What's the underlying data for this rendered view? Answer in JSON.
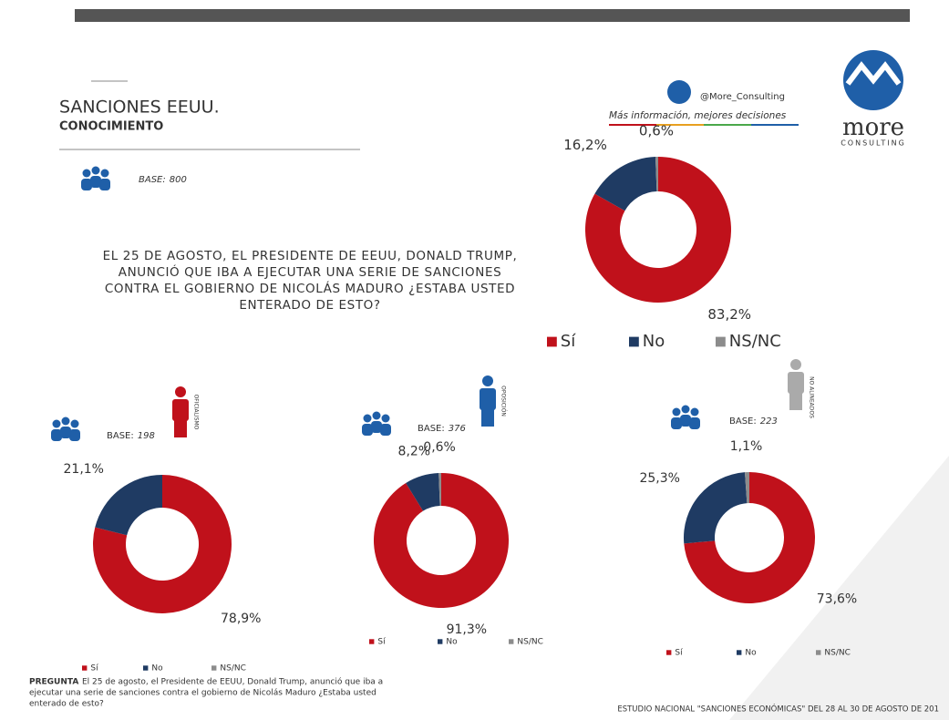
{
  "header": {
    "title": "SANCIONES EEUU.",
    "subtitle": "CONOCIMIENTO",
    "twitter": "@More_Consulting",
    "tagline": "Más información, mejores decisiones",
    "logo": "more",
    "logo_sub": "CONSULTING"
  },
  "question": [
    "EL 25 DE AGOSTO, EL PRESIDENTE DE EEUU, DONALD TRUMP,",
    "ANUNCIÓ QUE IBA A EJECUTAR UNA SERIE DE SANCIONES",
    "CONTRA EL GOBIERNO DE NICOLÁS MADURO ¿ESTABA USTED",
    "ENTERADO DE ESTO?"
  ],
  "footer": {
    "label": "PREGUNTA",
    "lines": [
      "El 25 de agosto, el Presidente de EEUU, Donald Trump,  anunció que iba a",
      "ejecutar una serie de sanciones contra el gobierno de Nicolás Maduro ¿Estaba usted",
      "enterado de esto?"
    ],
    "source": "ESTUDIO NACIONAL \"SANCIONES ECONÓMICAS\" DEL 28 AL 30  DE AGOSTO DE 201"
  },
  "chart_data": [
    {
      "type": "pie",
      "base_label": "BASE:",
      "base": 800,
      "categories": [
        "Sí",
        "No",
        "NS/NC"
      ],
      "colors": [
        "#c0111b",
        "#1f3b63",
        "#8c8c8c"
      ],
      "values": [
        83.2,
        16.2,
        0.6
      ],
      "value_labels": [
        "83,2%",
        "16,2%",
        "0,6%"
      ]
    },
    {
      "type": "pie",
      "subtitle": "OFICIALISMO",
      "base_label": "BASE:",
      "base": 198,
      "categories": [
        "Sí",
        "No",
        "NS/NC"
      ],
      "colors": [
        "#c0111b",
        "#1f3b63",
        "#8c8c8c"
      ],
      "values": [
        78.9,
        21.1,
        0
      ],
      "value_labels": [
        "78,9%",
        "21,1%",
        null
      ]
    },
    {
      "type": "pie",
      "subtitle": "OPOSICIÓN",
      "base_label": "BASE:",
      "base": 376,
      "categories": [
        "Sí",
        "No",
        "NS/NC"
      ],
      "colors": [
        "#c0111b",
        "#1f3b63",
        "#8c8c8c"
      ],
      "values": [
        91.3,
        8.2,
        0.6
      ],
      "value_labels": [
        "91,3%",
        "8,2%",
        "0,6%"
      ]
    },
    {
      "type": "pie",
      "subtitle": "NO ALINEADOS",
      "base_label": "BASE:",
      "base": 223,
      "categories": [
        "Sí",
        "No",
        "NS/NC"
      ],
      "colors": [
        "#c0111b",
        "#1f3b63",
        "#8c8c8c"
      ],
      "values": [
        73.6,
        25.3,
        1.1
      ],
      "value_labels": [
        "73,6%",
        "25,3%",
        "1,1%"
      ]
    }
  ]
}
